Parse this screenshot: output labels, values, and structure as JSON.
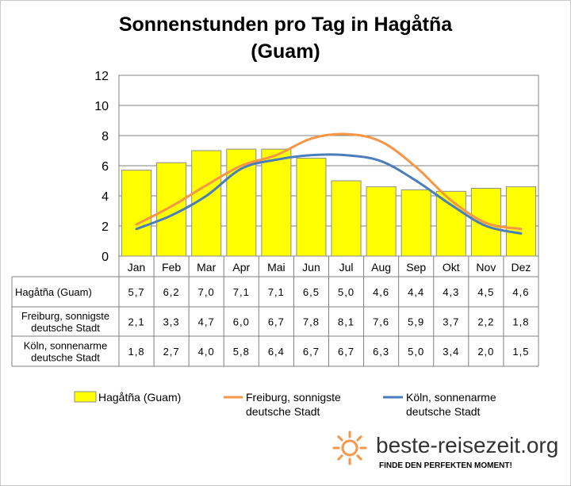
{
  "title_line1": "Sonnenstunden pro Tag in Hagåtña",
  "title_line2": "(Guam)",
  "chart_data": {
    "type": "bar",
    "categories": [
      "Jan",
      "Feb",
      "Mar",
      "Apr",
      "Mai",
      "Jun",
      "Jul",
      "Aug",
      "Sep",
      "Okt",
      "Nov",
      "Dez"
    ],
    "ylim": [
      0,
      12
    ],
    "yticks": [
      0,
      2,
      4,
      6,
      8,
      10,
      12
    ],
    "grid": true,
    "legend_position": "bottom",
    "series": [
      {
        "name": "Hagåtña (Guam)",
        "type": "bar",
        "color": "#ffff00",
        "values": [
          5.7,
          6.2,
          7.0,
          7.1,
          7.1,
          6.5,
          5.0,
          4.6,
          4.4,
          4.3,
          4.5,
          4.6
        ],
        "labels": [
          "5,7",
          "6,2",
          "7,0",
          "7,1",
          "7,1",
          "6,5",
          "5,0",
          "4,6",
          "4,4",
          "4,3",
          "4,5",
          "4,6"
        ],
        "table_label": [
          "Hagåtña (Guam)"
        ],
        "legend_label": [
          "Hagåtña (Guam)"
        ]
      },
      {
        "name": "Freiburg, sonnigste deutsche Stadt",
        "type": "line",
        "color": "#f79646",
        "values": [
          2.1,
          3.3,
          4.7,
          6.0,
          6.7,
          7.8,
          8.1,
          7.6,
          5.9,
          3.7,
          2.2,
          1.8
        ],
        "labels": [
          "2,1",
          "3,3",
          "4,7",
          "6,0",
          "6,7",
          "7,8",
          "8,1",
          "7,6",
          "5,9",
          "3,7",
          "2,2",
          "1,8"
        ],
        "table_label": [
          "Freiburg, sonnigste",
          "deutsche Stadt"
        ],
        "legend_label": [
          "Freiburg, sonnigste",
          "deutsche Stadt"
        ]
      },
      {
        "name": "Köln, sonnenarme deutsche Stadt",
        "type": "line",
        "color": "#4a7ebb",
        "values": [
          1.8,
          2.7,
          4.0,
          5.8,
          6.4,
          6.7,
          6.7,
          6.3,
          5.0,
          3.4,
          2.0,
          1.5
        ],
        "labels": [
          "1,8",
          "2,7",
          "4,0",
          "5,8",
          "6,4",
          "6,7",
          "6,7",
          "6,3",
          "5,0",
          "3,4",
          "2,0",
          "1,5"
        ],
        "table_label": [
          "Köln, sonnenarme",
          "deutsche Stadt"
        ],
        "legend_label": [
          "Köln, sonnenarme",
          "deutsche Stadt"
        ]
      }
    ]
  },
  "logo": {
    "name": "beste-reisezeit.org",
    "tagline": "FINDE DEN PERFEKTEN MOMENT!",
    "sun_color": "#f79646"
  }
}
